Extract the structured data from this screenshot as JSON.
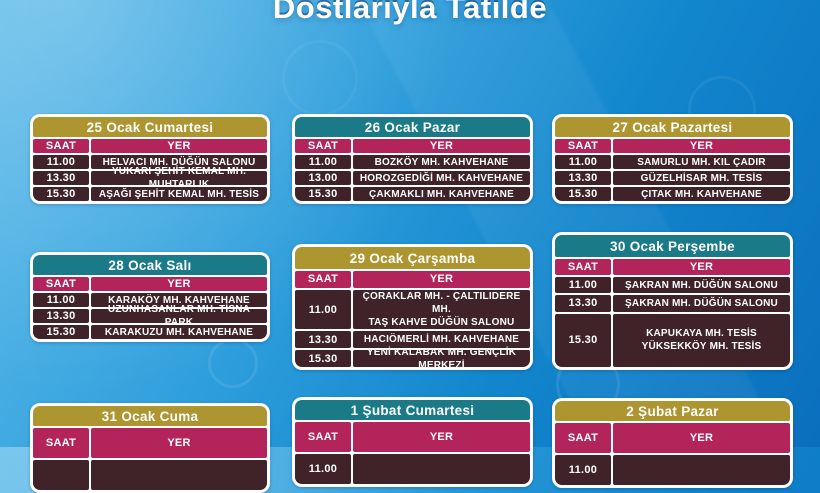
{
  "title": "Dostlarıyla Tatilde",
  "labels": {
    "time": "SAAT",
    "place": "YER"
  },
  "colors": {
    "header_gold": "#ad9530",
    "header_teal": "#1a7a87",
    "column_header_magenta": "#b3255a",
    "row_dark_maroon": "#3f2328",
    "card_border_white": "#ffffff",
    "background_blue_top": "#5cbae9",
    "background_blue_bottom": "#0a6fbe",
    "title_white": "#ffffff"
  },
  "tables": [
    {
      "date": "25 Ocak Cumartesi",
      "theme": "gold",
      "rows": [
        {
          "time": "11.00",
          "place": "HELVACI MH. DÜĞÜN SALONU"
        },
        {
          "time": "13.30",
          "place": "YUKARI ŞEHİT KEMAL MH. MUHTARLIK"
        },
        {
          "time": "15.30",
          "place": "AŞAĞI ŞEHİT KEMAL MH. TESİS"
        }
      ]
    },
    {
      "date": "26 Ocak Pazar",
      "theme": "teal",
      "rows": [
        {
          "time": "11.00",
          "place": "BOZKÖY MH. KAHVEHANE"
        },
        {
          "time": "13.00",
          "place": "HOROZGEDİĞİ MH. KAHVEHANE"
        },
        {
          "time": "15.30",
          "place": "ÇAKMAKLI MH. KAHVEHANE"
        }
      ]
    },
    {
      "date": "27 Ocak Pazartesi",
      "theme": "gold",
      "rows": [
        {
          "time": "11.00",
          "place": "SAMURLU MH. KIL ÇADIR"
        },
        {
          "time": "13.30",
          "place": "GÜZELHİSAR MH. TESİS"
        },
        {
          "time": "15.30",
          "place": "ÇITAK MH. KAHVEHANE"
        }
      ]
    },
    {
      "date": "28 Ocak Salı",
      "theme": "teal",
      "rows": [
        {
          "time": "11.00",
          "place": "KARAKÖY MH. KAHVEHANE"
        },
        {
          "time": "13.30",
          "place": "UZUNHASANLAR MH. TİSNA PARK"
        },
        {
          "time": "15.30",
          "place": "KARAKUZU MH. KAHVEHANE"
        }
      ]
    },
    {
      "date": "29 Ocak Çarşamba",
      "theme": "gold",
      "rows": [
        {
          "time": "11.00",
          "place": "ÇORAKLAR MH. - ÇALTILIDERE MH.\nTAŞ KAHVE DÜĞÜN SALONU"
        },
        {
          "time": "13.30",
          "place": "HACIÖMERLİ MH. KAHVEHANE"
        },
        {
          "time": "15.30",
          "place": "YENİ KALABAK MH. GENÇLİK MERKEZİ"
        }
      ]
    },
    {
      "date": "30 Ocak Perşembe",
      "theme": "teal",
      "rows": [
        {
          "time": "11.00",
          "place": "ŞAKRAN MH. DÜĞÜN SALONU"
        },
        {
          "time": "13.30",
          "place": "ŞAKRAN MH. DÜĞÜN SALONU"
        },
        {
          "time": "15.30",
          "place": "KAPUKAYA MH. TESİS\nYÜKSEKKÖY MH. TESİS"
        }
      ]
    },
    {
      "date": "31 Ocak Cuma",
      "theme": "gold",
      "rows": [
        {
          "time": "",
          "place": ""
        }
      ]
    },
    {
      "date": "1 Şubat Cumartesi",
      "theme": "teal",
      "rows": [
        {
          "time": "11.00",
          "place": ""
        }
      ]
    },
    {
      "date": "2 Şubat Pazar",
      "theme": "gold",
      "rows": [
        {
          "time": "11.00",
          "place": ""
        }
      ]
    }
  ]
}
